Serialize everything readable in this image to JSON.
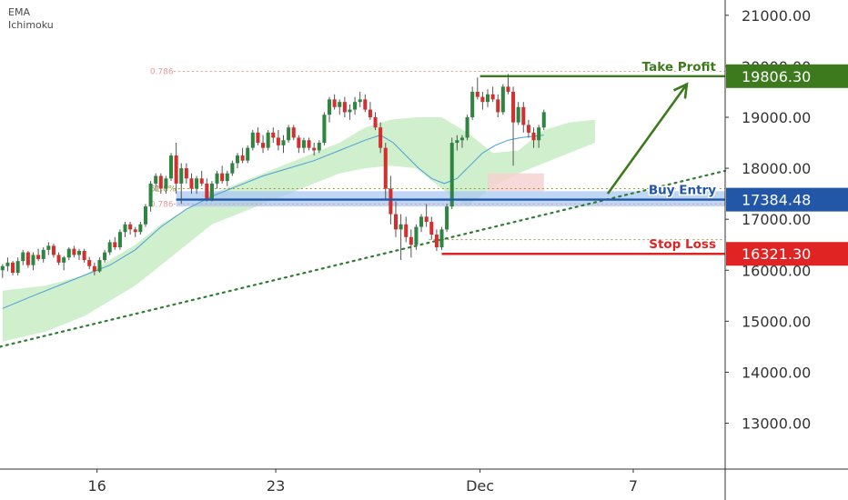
{
  "indicators": [
    "EMA",
    "Ichimoku"
  ],
  "colors": {
    "up": "#2e8540",
    "down": "#d32f2f",
    "wick": "#555555",
    "ema": "#4a9fd8",
    "cloud": "#c8ecc4",
    "cloud_red": "#f6cfcf",
    "trendline": "#2e7d32",
    "take_profit": "#3d7a1e",
    "buy_entry": "#2257a8",
    "buy_zone": "#aac8f2",
    "stop_loss": "#e02424",
    "fib": "#e89a9a",
    "fib_61": "#9a9a45",
    "axis": "#333333"
  },
  "chart_data": {
    "type": "candlestick",
    "ylim": [
      12100,
      21300
    ],
    "y_ticks": [
      {
        "value": 21000,
        "label": "21000.00"
      },
      {
        "value": 20000,
        "label": "20000.00"
      },
      {
        "value": 19000,
        "label": "19000.00"
      },
      {
        "value": 18000,
        "label": "18000.00"
      },
      {
        "value": 17000,
        "label": "17000.00"
      },
      {
        "value": 16000,
        "label": "16000.00"
      },
      {
        "value": 15000,
        "label": "15000.00"
      },
      {
        "value": 14000,
        "label": "14000.00"
      },
      {
        "value": 13000,
        "label": "13000.00"
      }
    ],
    "x_ticks": [
      {
        "t": 16,
        "label": "16"
      },
      {
        "t": 23,
        "label": "23"
      },
      {
        "t": 31,
        "label": "Dec"
      },
      {
        "t": 37,
        "label": "7"
      }
    ],
    "x_range": [
      12.2,
      40.6
    ],
    "candles_ohlc": [
      [
        12.3,
        16000,
        16120,
        15850,
        16080
      ],
      [
        12.5,
        16080,
        16250,
        15980,
        16150
      ],
      [
        12.7,
        16150,
        16180,
        15900,
        15950
      ],
      [
        12.9,
        15950,
        16250,
        15900,
        16180
      ],
      [
        13.1,
        16180,
        16400,
        16100,
        16350
      ],
      [
        13.3,
        16350,
        16380,
        16050,
        16100
      ],
      [
        13.5,
        16100,
        16350,
        16000,
        16300
      ],
      [
        13.7,
        16300,
        16420,
        16180,
        16220
      ],
      [
        13.9,
        16220,
        16450,
        16150,
        16400
      ],
      [
        14.1,
        16400,
        16550,
        16300,
        16480
      ],
      [
        14.3,
        16480,
        16520,
        16250,
        16300
      ],
      [
        14.5,
        16300,
        16350,
        16100,
        16150
      ],
      [
        14.7,
        16150,
        16280,
        16000,
        16250
      ],
      [
        14.9,
        16250,
        16450,
        16200,
        16420
      ],
      [
        15.1,
        16420,
        16480,
        16250,
        16300
      ],
      [
        15.3,
        16300,
        16420,
        16200,
        16380
      ],
      [
        15.5,
        16380,
        16420,
        16150,
        16200
      ],
      [
        15.7,
        16200,
        16260,
        16020,
        16080
      ],
      [
        15.9,
        16080,
        16150,
        15900,
        15980
      ],
      [
        16.1,
        15980,
        16250,
        15950,
        16200
      ],
      [
        16.3,
        16200,
        16400,
        16150,
        16350
      ],
      [
        16.5,
        16350,
        16600,
        16300,
        16550
      ],
      [
        16.7,
        16550,
        16650,
        16400,
        16450
      ],
      [
        16.9,
        16450,
        16800,
        16400,
        16750
      ],
      [
        17.1,
        16750,
        16950,
        16650,
        16900
      ],
      [
        17.3,
        16900,
        16950,
        16700,
        16800
      ],
      [
        17.5,
        16800,
        16850,
        16650,
        16750
      ],
      [
        17.7,
        16750,
        16950,
        16700,
        16900
      ],
      [
        17.9,
        16900,
        17300,
        16850,
        17250
      ],
      [
        18.1,
        17250,
        17750,
        17150,
        17700
      ],
      [
        18.3,
        17700,
        17900,
        17550,
        17850
      ],
      [
        18.5,
        17850,
        17900,
        17500,
        17600
      ],
      [
        18.7,
        17600,
        17850,
        17500,
        17800
      ],
      [
        18.9,
        17800,
        18300,
        17750,
        18250
      ],
      [
        19.1,
        18250,
        18500,
        17500,
        17700
      ],
      [
        19.3,
        17700,
        18100,
        17300,
        18000
      ],
      [
        19.5,
        18000,
        18100,
        17700,
        17800
      ],
      [
        19.7,
        17800,
        17900,
        17500,
        17600
      ],
      [
        19.9,
        17600,
        17850,
        17500,
        17800
      ],
      [
        20.1,
        17800,
        17950,
        17650,
        17700
      ],
      [
        20.3,
        17700,
        17800,
        17350,
        17400
      ],
      [
        20.5,
        17400,
        17750,
        17350,
        17700
      ],
      [
        20.7,
        17700,
        17950,
        17600,
        17900
      ],
      [
        20.9,
        17900,
        18050,
        17700,
        17750
      ],
      [
        21.1,
        17750,
        17950,
        17650,
        17900
      ],
      [
        21.3,
        17900,
        18150,
        17850,
        18100
      ],
      [
        21.5,
        18100,
        18300,
        18000,
        18250
      ],
      [
        21.7,
        18250,
        18400,
        18100,
        18150
      ],
      [
        21.9,
        18150,
        18450,
        18100,
        18400
      ],
      [
        22.1,
        18400,
        18750,
        18350,
        18700
      ],
      [
        22.3,
        18700,
        18800,
        18450,
        18500
      ],
      [
        22.5,
        18500,
        18650,
        18300,
        18400
      ],
      [
        22.7,
        18400,
        18750,
        18350,
        18700
      ],
      [
        22.9,
        18700,
        18800,
        18500,
        18600
      ],
      [
        23.1,
        18600,
        18750,
        18350,
        18450
      ],
      [
        23.3,
        18450,
        18650,
        18300,
        18550
      ],
      [
        23.5,
        18550,
        18850,
        18500,
        18800
      ],
      [
        23.7,
        18800,
        18850,
        18550,
        18600
      ],
      [
        23.9,
        18600,
        18650,
        18300,
        18400
      ],
      [
        24.1,
        18400,
        18600,
        18300,
        18550
      ],
      [
        24.3,
        18550,
        18600,
        18350,
        18400
      ],
      [
        24.5,
        18400,
        18500,
        18250,
        18350
      ],
      [
        24.7,
        18350,
        18550,
        18300,
        18500
      ],
      [
        24.9,
        18500,
        19100,
        18450,
        19050
      ],
      [
        25.1,
        19050,
        19400,
        18900,
        19350
      ],
      [
        25.3,
        19350,
        19450,
        19150,
        19200
      ],
      [
        25.5,
        19200,
        19350,
        19050,
        19300
      ],
      [
        25.7,
        19300,
        19400,
        19000,
        19100
      ],
      [
        25.9,
        19100,
        19250,
        18950,
        19150
      ],
      [
        26.1,
        19150,
        19400,
        19050,
        19300
      ],
      [
        26.3,
        19300,
        19500,
        19200,
        19350
      ],
      [
        26.5,
        19350,
        19450,
        19100,
        19150
      ],
      [
        26.7,
        19150,
        19300,
        18950,
        19000
      ],
      [
        26.9,
        19000,
        19100,
        18750,
        18800
      ],
      [
        27.1,
        18800,
        18900,
        18300,
        18400
      ],
      [
        27.3,
        18400,
        18500,
        17400,
        17600
      ],
      [
        27.5,
        17600,
        17850,
        16900,
        17100
      ],
      [
        27.7,
        17100,
        17350,
        16650,
        16800
      ],
      [
        27.9,
        16800,
        17100,
        16200,
        16900
      ],
      [
        28.1,
        16900,
        17050,
        16550,
        16650
      ],
      [
        28.3,
        16650,
        16800,
        16250,
        16500
      ],
      [
        28.5,
        16500,
        16900,
        16400,
        16850
      ],
      [
        28.7,
        16850,
        17100,
        16750,
        17050
      ],
      [
        28.9,
        17050,
        17300,
        16850,
        16950
      ],
      [
        29.1,
        16950,
        17050,
        16600,
        16700
      ],
      [
        29.3,
        16700,
        16800,
        16380,
        16450
      ],
      [
        29.5,
        16450,
        16850,
        16400,
        16800
      ],
      [
        29.7,
        16800,
        17300,
        16750,
        17250
      ],
      [
        29.9,
        17250,
        18600,
        17200,
        18500
      ],
      [
        30.1,
        18500,
        18650,
        18350,
        18550
      ],
      [
        30.3,
        18550,
        18650,
        18400,
        18600
      ],
      [
        30.5,
        18600,
        19050,
        18550,
        19000
      ],
      [
        30.7,
        19000,
        19600,
        18950,
        19500
      ],
      [
        30.9,
        19500,
        19780,
        19350,
        19400
      ],
      [
        31.1,
        19400,
        19500,
        19150,
        19300
      ],
      [
        31.3,
        19300,
        19550,
        19200,
        19450
      ],
      [
        31.5,
        19450,
        19600,
        19300,
        19350
      ],
      [
        31.7,
        19350,
        19450,
        19000,
        19100
      ],
      [
        31.9,
        19100,
        19650,
        19050,
        19600
      ],
      [
        32.1,
        19600,
        19850,
        19450,
        19500
      ],
      [
        32.3,
        19500,
        19600,
        18050,
        18900
      ],
      [
        32.5,
        18900,
        19300,
        18850,
        19200
      ],
      [
        32.7,
        19200,
        19300,
        18700,
        18850
      ],
      [
        32.9,
        18850,
        18950,
        18600,
        18700
      ],
      [
        33.1,
        18700,
        18800,
        18400,
        18550
      ],
      [
        33.3,
        18550,
        18850,
        18400,
        18800
      ],
      [
        33.5,
        18800,
        19150,
        18750,
        19100
      ]
    ],
    "ema": [
      [
        12.3,
        15250
      ],
      [
        13.5,
        15500
      ],
      [
        14.5,
        15700
      ],
      [
        15.5,
        15900
      ],
      [
        16.5,
        16100
      ],
      [
        17.5,
        16400
      ],
      [
        18.5,
        16850
      ],
      [
        19.5,
        17200
      ],
      [
        20.5,
        17450
      ],
      [
        21.5,
        17650
      ],
      [
        22.5,
        17850
      ],
      [
        23.5,
        18000
      ],
      [
        24.5,
        18150
      ],
      [
        25.5,
        18350
      ],
      [
        26.5,
        18550
      ],
      [
        27.1,
        18650
      ],
      [
        27.6,
        18500
      ],
      [
        28.1,
        18250
      ],
      [
        28.6,
        18000
      ],
      [
        29.1,
        17800
      ],
      [
        29.6,
        17700
      ],
      [
        30.1,
        17800
      ],
      [
        30.6,
        18050
      ],
      [
        31.1,
        18300
      ],
      [
        31.6,
        18450
      ],
      [
        32.1,
        18550
      ],
      [
        32.6,
        18600
      ],
      [
        33.5,
        18650
      ]
    ],
    "cloud_top": [
      [
        12.3,
        15600
      ],
      [
        14.0,
        15700
      ],
      [
        15.5,
        15900
      ],
      [
        16.5,
        16200
      ],
      [
        17.5,
        16500
      ],
      [
        18.5,
        16900
      ],
      [
        19.5,
        17200
      ],
      [
        20.5,
        17500
      ],
      [
        21.5,
        17700
      ],
      [
        22.5,
        17900
      ],
      [
        23.5,
        18100
      ],
      [
        24.5,
        18300
      ],
      [
        25.5,
        18500
      ],
      [
        26.5,
        18800
      ],
      [
        27.5,
        18950
      ],
      [
        28.5,
        19000
      ],
      [
        29.5,
        19000
      ],
      [
        30.5,
        18700
      ],
      [
        31.5,
        18300
      ],
      [
        32.5,
        18350
      ],
      [
        33.5,
        18750
      ],
      [
        34.5,
        18900
      ],
      [
        35.5,
        18950
      ]
    ],
    "cloud_bottom": [
      [
        12.3,
        14600
      ],
      [
        14.0,
        14800
      ],
      [
        15.5,
        15100
      ],
      [
        16.5,
        15400
      ],
      [
        17.5,
        15700
      ],
      [
        18.5,
        16100
      ],
      [
        19.5,
        16500
      ],
      [
        20.5,
        16900
      ],
      [
        21.5,
        17100
      ],
      [
        22.5,
        17300
      ],
      [
        23.5,
        17500
      ],
      [
        24.5,
        17700
      ],
      [
        25.5,
        17900
      ],
      [
        26.5,
        18000
      ],
      [
        27.5,
        18050
      ],
      [
        28.5,
        18000
      ],
      [
        29.5,
        17600
      ],
      [
        30.5,
        17250
      ],
      [
        31.5,
        17650
      ],
      [
        32.5,
        17900
      ],
      [
        33.5,
        18100
      ],
      [
        34.5,
        18300
      ],
      [
        35.5,
        18500
      ]
    ],
    "cloud_red_region": {
      "x": [
        31.3,
        33.5
      ],
      "top": 17900,
      "bottom": 17550
    },
    "trendline": {
      "p1": [
        12.2,
        14500
      ],
      "p2": [
        40.6,
        17950
      ]
    },
    "buy_zone": {
      "x_start": 19.1,
      "top": 17550,
      "bottom": 17250
    },
    "arrow": {
      "from": [
        36.0,
        17500
      ],
      "to": [
        39.1,
        19650
      ]
    },
    "levels": {
      "take_profit": {
        "value": 19806.3,
        "label": "Take Profit",
        "price_label": "19806.30",
        "x_start": 31.0
      },
      "buy_entry": {
        "value": 17384.48,
        "label": "Buy Entry",
        "price_label": "17384.48",
        "x_start": 19.1
      },
      "stop_loss": {
        "value": 16321.3,
        "label": "Stop Loss",
        "price_label": "16321.30",
        "x_start": 29.5
      }
    },
    "fib_lines": [
      {
        "label": "0.786",
        "value": 19900,
        "x_start": 19.0,
        "style": "fib"
      },
      {
        "label": "61.8%",
        "value": 17600,
        "x_start": 19.0,
        "style": "fib_61"
      },
      {
        "label": "0.786",
        "value": 17300,
        "x_start": 19.0,
        "style": "fib"
      },
      {
        "label": "",
        "value": 16600,
        "x_start": 29.0,
        "style": "fib_61"
      }
    ]
  }
}
